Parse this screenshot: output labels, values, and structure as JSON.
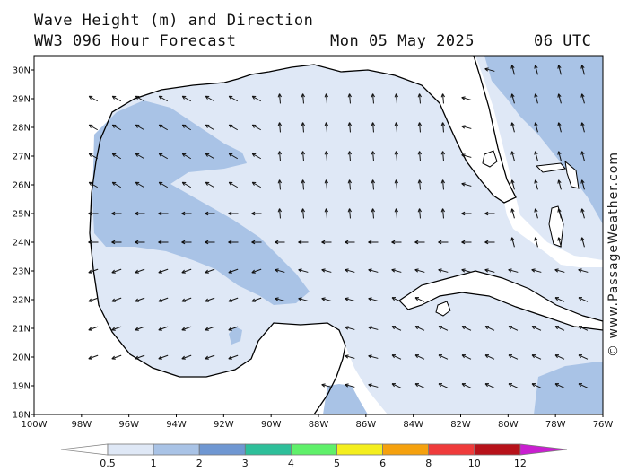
{
  "header": {
    "line1": "Wave Height (m) and Direction",
    "line2": "WW3 096 Hour Forecast",
    "date": "Mon 05 May 2025",
    "time": "06 UTC"
  },
  "map": {
    "lat_labels": [
      "30N",
      "29N",
      "28N",
      "27N",
      "26N",
      "25N",
      "24N",
      "23N",
      "22N",
      "21N",
      "20N",
      "19N",
      "18N"
    ],
    "lon_labels": [
      "100W",
      "98W",
      "96W",
      "94W",
      "92W",
      "90W",
      "88W",
      "86W",
      "84W",
      "82W",
      "80W",
      "78W",
      "76W"
    ],
    "lat_range": [
      18,
      30.5
    ],
    "lon_range": [
      -100,
      -76
    ]
  },
  "colorbar": {
    "labels": [
      "0.5",
      "1",
      "2",
      "3",
      "4",
      "5",
      "6",
      "8",
      "10",
      "12"
    ],
    "colors": [
      "#dfe8f6",
      "#a9c3e6",
      "#6f97d2",
      "#2ebf9a",
      "#5ff06a",
      "#f4ee1e",
      "#f5a10e",
      "#ef3b3b",
      "#b7121a",
      "#c91fd0"
    ],
    "low_color": "#ffffff",
    "high_color": "#c91fd0"
  },
  "fill_colors": {
    "ocean_low": "#dfe8f6",
    "ocean_mid": "#a9c3e6",
    "land": "#ffffff",
    "coast": "#000000"
  },
  "copyright": "© www.PassageWeather.com"
}
